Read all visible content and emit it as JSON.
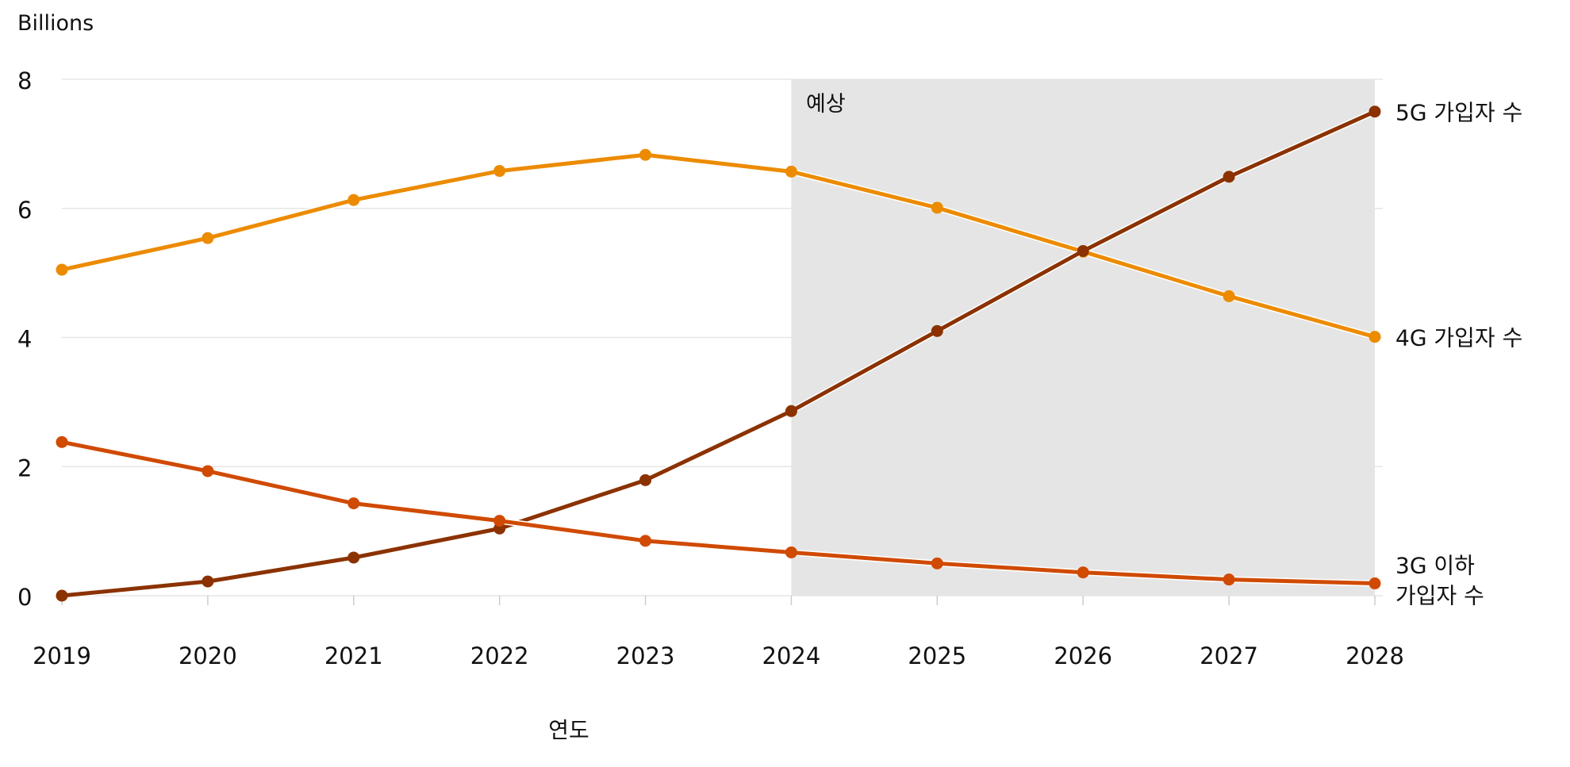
{
  "chart_data": {
    "type": "line",
    "ylabel": "Billions",
    "xlabel": "연도",
    "ylim": [
      0,
      8
    ],
    "yticks": [
      0,
      2,
      4,
      6,
      8
    ],
    "grid": true,
    "x": [
      2019,
      2020,
      2021,
      2022,
      2023,
      2024,
      2025,
      2026,
      2027,
      2028
    ],
    "forecast": {
      "label": "예상",
      "from": 2024,
      "to": 2028,
      "color": "#e5e5e5"
    },
    "series": [
      {
        "name": "4G 가입자 수",
        "color": "#ec8b00",
        "values": [
          5.05,
          5.54,
          6.13,
          6.58,
          6.83,
          6.57,
          6.01,
          5.33,
          4.64,
          4.01
        ]
      },
      {
        "name": "5G 가입자 수",
        "color": "#8b3200",
        "values": [
          0.0,
          0.22,
          0.59,
          1.04,
          1.79,
          2.86,
          4.1,
          5.34,
          6.49,
          7.5
        ]
      },
      {
        "name": "3G 이하 가입자 수",
        "name_lines": [
          "3G 이하",
          "가입자 수"
        ],
        "color": "#d04a02",
        "values": [
          2.38,
          1.93,
          1.43,
          1.16,
          0.85,
          0.67,
          0.5,
          0.36,
          0.25,
          0.19
        ]
      }
    ]
  }
}
